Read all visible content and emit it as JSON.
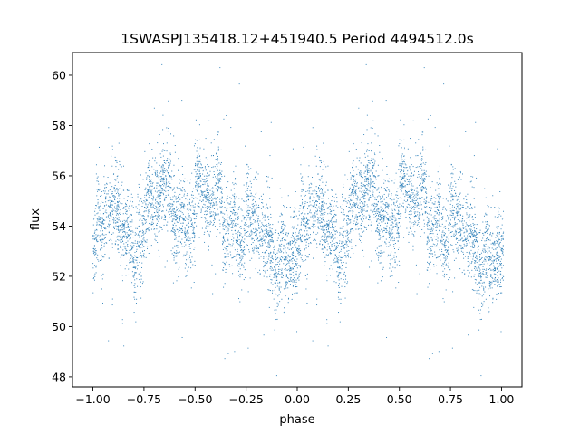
{
  "chart_data": {
    "type": "scatter",
    "title": "1SWASPJ135418.12+451940.5 Period 4494512.0s",
    "xlabel": "phase",
    "ylabel": "flux",
    "xlim": [
      -1.1,
      1.1
    ],
    "ylim": [
      47.6,
      60.9
    ],
    "xticks": [
      -1.0,
      -0.75,
      -0.5,
      -0.25,
      0.0,
      0.25,
      0.5,
      0.75,
      1.0
    ],
    "xtick_labels": [
      "−1.00",
      "−0.75",
      "−0.50",
      "−0.25",
      "0.00",
      "0.25",
      "0.50",
      "0.75",
      "1.00"
    ],
    "yticks": [
      48,
      50,
      52,
      54,
      56,
      58,
      60
    ],
    "ytick_labels": [
      "48",
      "50",
      "52",
      "54",
      "56",
      "58",
      "60"
    ],
    "grid": false,
    "marker_color": "#1f77b4",
    "series": [
      {
        "profile_phase": [
          0.0,
          0.05,
          0.1,
          0.15,
          0.2,
          0.25,
          0.3,
          0.35,
          0.4,
          0.45,
          0.5,
          0.55,
          0.6,
          0.65,
          0.7,
          0.75,
          0.8,
          0.85,
          0.9,
          0.95,
          1.0
        ],
        "profile_flux": [
          53.0,
          53.7,
          54.2,
          54.6,
          53.6,
          53.8,
          54.3,
          54.8,
          55.2,
          55.1,
          54.9,
          54.6,
          54.4,
          54.2,
          54.4,
          54.0,
          53.6,
          53.3,
          53.0,
          53.3,
          54.0
        ],
        "scatter_sigma": 0.85,
        "points_per_cycle": 3200
      }
    ]
  }
}
